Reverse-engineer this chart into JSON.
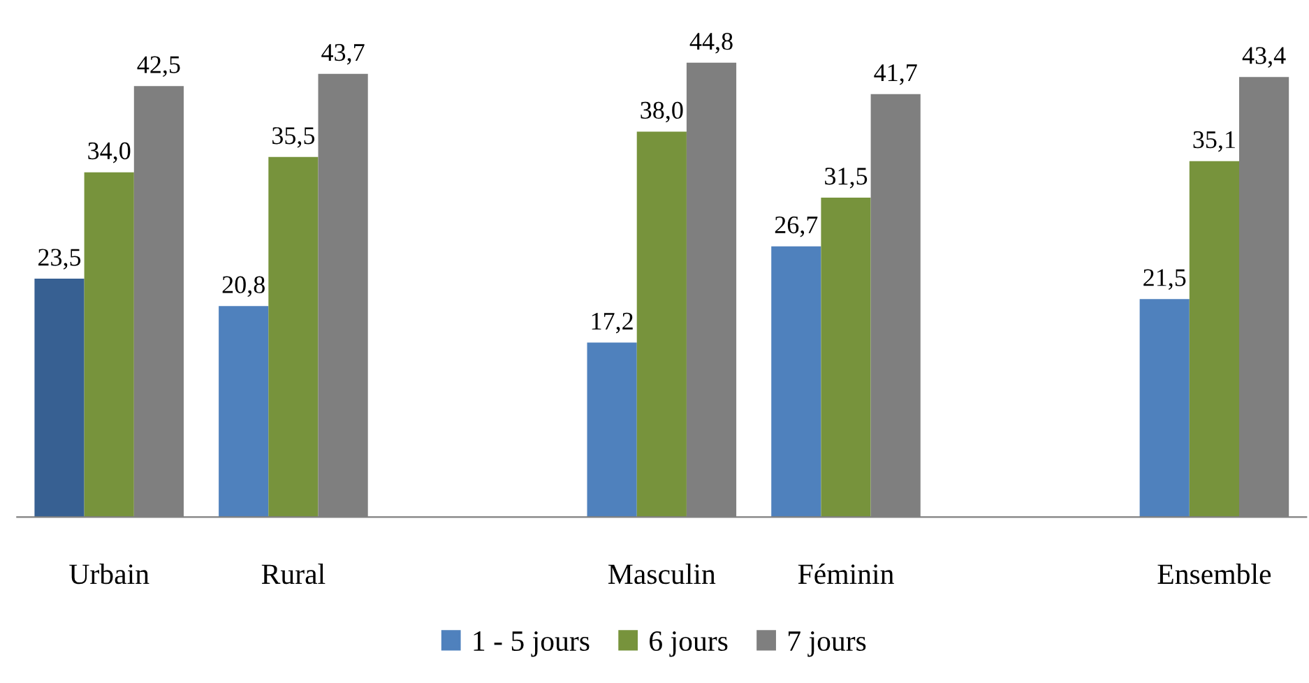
{
  "chart_data": {
    "type": "bar",
    "categories": [
      "Urbain",
      "Rural",
      null,
      "Masculin",
      "Féminin",
      null,
      "Ensemble"
    ],
    "series": [
      {
        "name": "1 - 5 jours",
        "color": "#4f81bd",
        "colors": [
          "#376092",
          "#4f81bd",
          null,
          "#4f81bd",
          "#4f81bd",
          null,
          "#4f81bd"
        ],
        "values": [
          23.5,
          20.8,
          null,
          17.2,
          26.7,
          null,
          21.5
        ],
        "value_labels": [
          "23,5",
          "20,8",
          null,
          "17,2",
          "26,7",
          null,
          "21,5"
        ]
      },
      {
        "name": "6 jours",
        "color": "#77933c",
        "values": [
          34.0,
          35.5,
          null,
          38.0,
          31.5,
          null,
          35.1
        ],
        "value_labels": [
          "34,0",
          "35,5",
          null,
          "38,0",
          "31,5",
          null,
          "35,1"
        ]
      },
      {
        "name": "7 jours",
        "color": "#7f7f7f",
        "values": [
          42.5,
          43.7,
          null,
          44.8,
          41.7,
          null,
          43.4
        ],
        "value_labels": [
          "42,5",
          "43,7",
          null,
          "44,8",
          "41,7",
          null,
          "43,4"
        ]
      }
    ],
    "legend": "bottom",
    "grid": false
  }
}
